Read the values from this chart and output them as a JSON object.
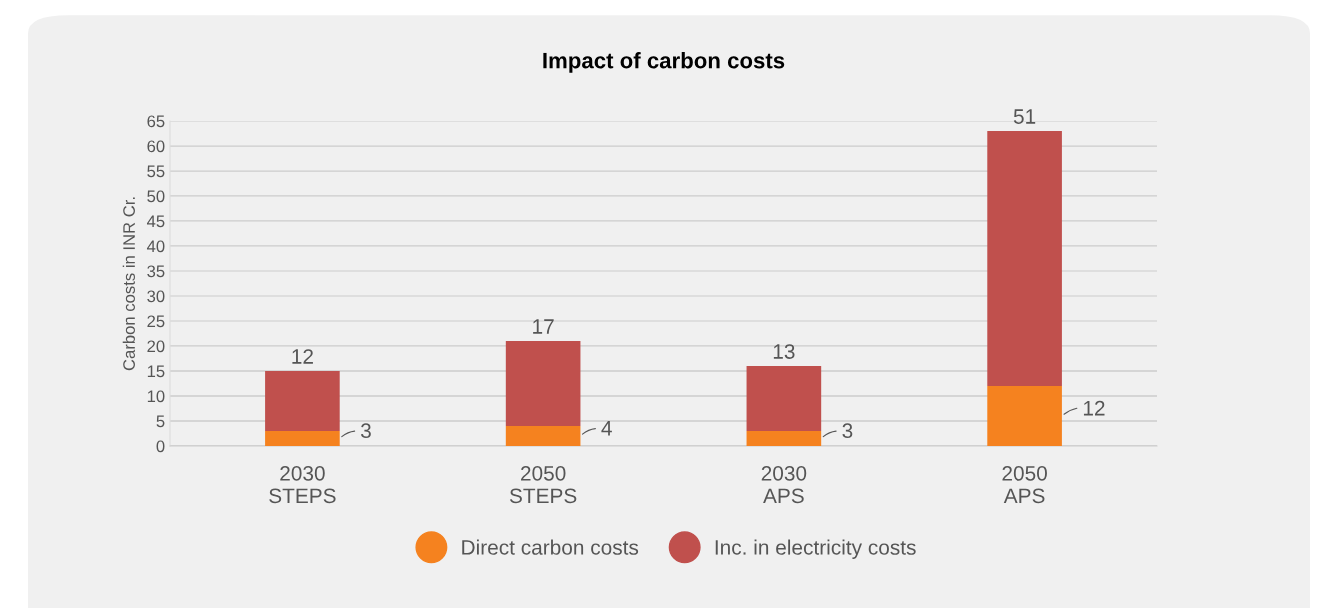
{
  "chart_data": {
    "type": "bar",
    "title": "Impact of carbon costs",
    "ylabel": "Carbon costs in INR Cr.",
    "categories": [
      "2030\nSTEPS",
      "2050\nSTEPS",
      "2030\nAPS",
      "2050\nAPS"
    ],
    "stacked": true,
    "series": [
      {
        "name": "Direct carbon costs",
        "color": "#f5821f",
        "values": [
          3,
          4,
          3,
          12
        ]
      },
      {
        "name": "Inc. in electricity costs",
        "color": "#c0504d",
        "values": [
          12,
          17,
          13,
          51
        ]
      }
    ],
    "ylim": [
      0,
      65
    ],
    "yticks": [
      0,
      5,
      10,
      15,
      20,
      25,
      30,
      35,
      40,
      45,
      50,
      55,
      60,
      65
    ],
    "grid": "y",
    "legend": "bottom",
    "data_labels": true
  }
}
